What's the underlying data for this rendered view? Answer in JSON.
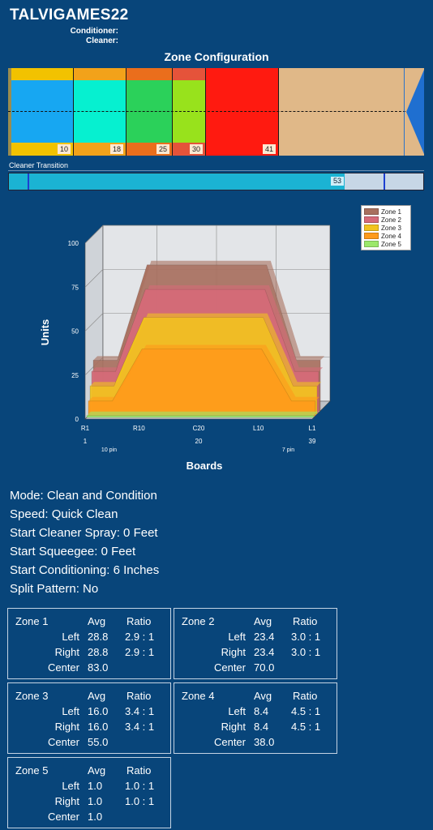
{
  "header": {
    "title": "TALVIGAMES22",
    "conditioner_label": "Conditioner:",
    "cleaner_label": "Cleaner:"
  },
  "zone_configuration": {
    "title": "Zone Configuration",
    "zones": [
      {
        "label": "10",
        "color": "#17a7f2",
        "band": "#f2c200"
      },
      {
        "label": "18",
        "color": "#06f0d0",
        "band": "#f2a21a"
      },
      {
        "label": "25",
        "color": "#2bd15a",
        "band": "#ea6e1c"
      },
      {
        "label": "30",
        "color": "#98e21c",
        "band": "#e5533a"
      },
      {
        "label": "41",
        "color": "#ff1a10",
        "band": "#ff1a10"
      }
    ],
    "lane_color": "#e0b888",
    "pin_color": "#1f6fd0"
  },
  "cleaner_transition": {
    "label": "Cleaner Transition",
    "value": "53",
    "fill_fraction": 0.81
  },
  "chart_data": {
    "type": "area",
    "xlabel": "Boards",
    "ylabel": "Units",
    "ylim": [
      0,
      100
    ],
    "yticks": [
      "0",
      "25",
      "50",
      "75",
      "100"
    ],
    "xticks": [
      "R1",
      "R10",
      "C20",
      "L10",
      "L1"
    ],
    "xticks_sub": [
      "1",
      "20",
      "39"
    ],
    "pin_labels": [
      "10 pin",
      "7 pin"
    ],
    "boards": [
      1,
      5,
      10,
      15,
      20,
      25,
      30,
      35,
      39
    ],
    "series": [
      {
        "name": "Zone 1",
        "color": "#a8705e",
        "values": [
          28.8,
          28.8,
          83.0,
          83.0,
          83.0,
          83.0,
          83.0,
          28.8,
          28.8
        ]
      },
      {
        "name": "Zone 2",
        "color": "#d66a78",
        "values": [
          23.4,
          23.4,
          70.0,
          70.0,
          70.0,
          70.0,
          70.0,
          23.4,
          23.4
        ]
      },
      {
        "name": "Zone 3",
        "color": "#f2c31e",
        "values": [
          16.0,
          16.0,
          55.0,
          55.0,
          55.0,
          55.0,
          55.0,
          16.0,
          16.0
        ]
      },
      {
        "name": "Zone 4",
        "color": "#ff9a1a",
        "values": [
          8.4,
          8.4,
          38.0,
          38.0,
          38.0,
          38.0,
          38.0,
          8.4,
          8.4
        ]
      },
      {
        "name": "Zone 5",
        "color": "#9be86a",
        "values": [
          1.0,
          1.0,
          1.0,
          1.0,
          1.0,
          1.0,
          1.0,
          1.0,
          1.0
        ]
      }
    ],
    "legend_position": "top-right"
  },
  "info": {
    "mode": "Mode: Clean and Condition",
    "speed": "Speed: Quick Clean",
    "start_cleaner_spray": "Start Cleaner Spray: 0 Feet",
    "start_squeegee": "Start Squeegee: 0 Feet",
    "start_conditioning": "Start Conditioning: 6 Inches",
    "split_pattern": "Split Pattern: No"
  },
  "zone_tables": [
    {
      "name": "Zone 1",
      "avg_label": "Avg",
      "ratio_label": "Ratio",
      "left_label": "Left",
      "right_label": "Right",
      "center_label": "Center",
      "left_avg": "28.8",
      "left_ratio": "2.9 : 1",
      "right_avg": "28.8",
      "right_ratio": "2.9 : 1",
      "center_avg": "83.0"
    },
    {
      "name": "Zone 2",
      "avg_label": "Avg",
      "ratio_label": "Ratio",
      "left_label": "Left",
      "right_label": "Right",
      "center_label": "Center",
      "left_avg": "23.4",
      "left_ratio": "3.0 : 1",
      "right_avg": "23.4",
      "right_ratio": "3.0 : 1",
      "center_avg": "70.0"
    },
    {
      "name": "Zone 3",
      "avg_label": "Avg",
      "ratio_label": "Ratio",
      "left_label": "Left",
      "right_label": "Right",
      "center_label": "Center",
      "left_avg": "16.0",
      "left_ratio": "3.4 : 1",
      "right_avg": "16.0",
      "right_ratio": "3.4 : 1",
      "center_avg": "55.0"
    },
    {
      "name": "Zone 4",
      "avg_label": "Avg",
      "ratio_label": "Ratio",
      "left_label": "Left",
      "right_label": "Right",
      "center_label": "Center",
      "left_avg": "8.4",
      "left_ratio": "4.5 : 1",
      "right_avg": "8.4",
      "right_ratio": "4.5 : 1",
      "center_avg": "38.0"
    },
    {
      "name": "Zone 5",
      "avg_label": "Avg",
      "ratio_label": "Ratio",
      "left_label": "Left",
      "right_label": "Right",
      "center_label": "Center",
      "left_avg": "1.0",
      "left_ratio": "1.0 : 1",
      "right_avg": "1.0",
      "right_ratio": "1.0 : 1",
      "center_avg": "1.0"
    }
  ]
}
